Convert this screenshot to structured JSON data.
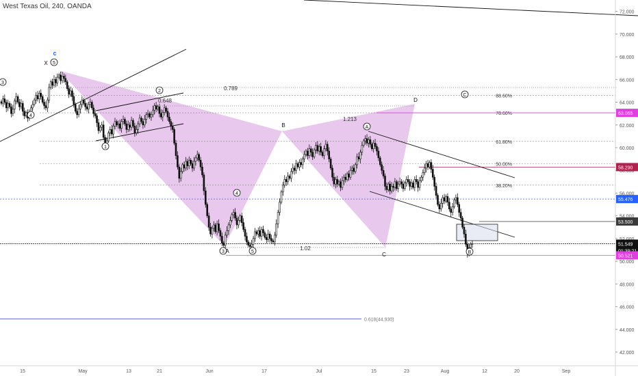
{
  "header": {
    "title": "West Texas Oil, 240, OANDA"
  },
  "chart_data": {
    "type": "candlestick",
    "symbol": "West Texas Oil",
    "interval": "240",
    "source": "OANDA",
    "x_ticks": [
      "15",
      "May",
      "13",
      "21",
      "Jun",
      "17",
      "Jul",
      "15",
      "23",
      "Aug",
      "12",
      "20",
      "Sep"
    ],
    "y_ticks": [
      "72.000",
      "70.000",
      "68.000",
      "66.000",
      "64.000",
      "62.000",
      "60.000",
      "58.000",
      "56.000",
      "54.000",
      "52.000",
      "50.000",
      "48.000",
      "46.000",
      "44.000",
      "42.000"
    ],
    "ylim": [
      40.8,
      73
    ],
    "price_labels": [
      {
        "text": "63.065",
        "value": 63.065,
        "color": "#e040e0"
      },
      {
        "text": "58.290",
        "value": 58.29,
        "color": "#b0234f"
      },
      {
        "text": "55.476",
        "value": 55.476,
        "color": "#2962ff"
      },
      {
        "text": "53.500",
        "value": 53.5,
        "color": "#3a3a3a"
      },
      {
        "text": "51.549",
        "value": 51.549,
        "color": "#111111"
      },
      {
        "text": "01:39:21",
        "value": 50.95,
        "color": "#111111"
      },
      {
        "text": "50.521",
        "value": 50.521,
        "color": "#e040e0"
      }
    ],
    "fib_levels": [
      {
        "label": "88.60%",
        "value": 64.6
      },
      {
        "label": "78.60%",
        "value": 63.065
      },
      {
        "label": "61.80%",
        "value": 60.55
      },
      {
        "label": "50.00%",
        "value": 58.6
      },
      {
        "label": "38.20%",
        "value": 56.7
      }
    ],
    "fib_extension": {
      "label": "0.618(44.930)",
      "value": 44.93
    },
    "harmonic_labels": [
      "X",
      "B",
      "D",
      "C",
      "A"
    ],
    "ratios": [
      "0.789",
      "0.648",
      "1.213",
      "1.02"
    ],
    "wave_labels": [
      "3",
      "4",
      "5",
      "1",
      "2",
      "4",
      "3",
      "5",
      "A",
      "B",
      "C"
    ],
    "wave_degree_label": "c",
    "series": [
      {
        "values": [
          63.9,
          64.3,
          64.0,
          63.5,
          63.9,
          63.6,
          63.0,
          63.4,
          64.1,
          64.5,
          64.0,
          63.6,
          63.9,
          63.2,
          62.8,
          63.1,
          62.6,
          63.0,
          63.5,
          63.8,
          64.2,
          64.6,
          64.3,
          64.8,
          64.5,
          64.0,
          63.7,
          63.5,
          64.2,
          65.3,
          65.8,
          65.5,
          66.0,
          65.7,
          66.2,
          66.4,
          65.9,
          66.3,
          66.1,
          65.8,
          65.2,
          64.7,
          65.0,
          64.5,
          63.8,
          63.2,
          62.9,
          63.4,
          63.8,
          64.2,
          63.9,
          63.6,
          63.4,
          63.8,
          64.0,
          63.5,
          63.0,
          62.8,
          62.2,
          61.5,
          61.8,
          62.0,
          60.9,
          60.3,
          60.6,
          61.3,
          61.6,
          61.2,
          61.9,
          62.3,
          62.0,
          62.1,
          61.7,
          62.3,
          62.5,
          62.1,
          61.6,
          62.0,
          61.8,
          62.4,
          61.9,
          61.3,
          61.6,
          62.1,
          62.6,
          62.3,
          62.0,
          62.5,
          62.9,
          63.0,
          62.7,
          62.9,
          63.3,
          63.7,
          63.4,
          63.6,
          63.0,
          62.7,
          63.1,
          63.5,
          63.2,
          62.7,
          62.3,
          61.9,
          61.6,
          60.4,
          59.3,
          58.3,
          57.3,
          57.9,
          58.5,
          58.2,
          58.8,
          58.4,
          58.9,
          58.6,
          58.2,
          58.8,
          59.1,
          59.4,
          58.9,
          58.3,
          57.6,
          56.2,
          55.0,
          54.0,
          53.0,
          52.4,
          52.9,
          53.2,
          52.6,
          53.3,
          52.7,
          52.2,
          51.6,
          51.4,
          52.3,
          52.7,
          53.2,
          53.6,
          54.1,
          54.3,
          53.8,
          53.2,
          53.6,
          54.0,
          53.4,
          52.8,
          52.2,
          51.7,
          51.4,
          51.3,
          51.5,
          52.0,
          52.6,
          52.4,
          52.7,
          52.2,
          52.8,
          52.5,
          52.1,
          51.9,
          52.4,
          52.0,
          51.8,
          51.7,
          52.3,
          53.3,
          54.3,
          55.2,
          56.1,
          56.7,
          57.2,
          57.0,
          57.5,
          57.3,
          57.9,
          58.2,
          58.0,
          58.6,
          58.3,
          58.7,
          58.5,
          59.0,
          59.4,
          59.7,
          59.3,
          59.9,
          59.6,
          59.2,
          59.8,
          60.2,
          59.7,
          60.1,
          59.6,
          59.3,
          59.9,
          60.3,
          59.7,
          59.0,
          58.2,
          57.4,
          56.8,
          57.2,
          56.8,
          57.0,
          56.5,
          57.1,
          57.4,
          57.2,
          57.7,
          57.4,
          58.0,
          58.2,
          57.9,
          58.5,
          59.2,
          59.0,
          59.6,
          60.2,
          60.6,
          60.8,
          60.4,
          60.7,
          60.3,
          59.9,
          60.4,
          60.1,
          59.7,
          59.1,
          58.5,
          58.0,
          57.5,
          56.6,
          56.3,
          56.8,
          56.2,
          56.6,
          56.5,
          57.0,
          56.4,
          56.8,
          57.0,
          56.8,
          56.4,
          56.9,
          57.2,
          57.0,
          56.6,
          56.9,
          56.5,
          57.2,
          57.0,
          56.5,
          57.1,
          57.4,
          57.8,
          58.2,
          58.6,
          58.3,
          58.7,
          58.1,
          57.4,
          56.6,
          55.8,
          55.0,
          54.6,
          55.1,
          55.6,
          55.3,
          55.7,
          55.2,
          54.6,
          54.3,
          54.8,
          55.4,
          55.6,
          55.0,
          54.3,
          53.8,
          53.0,
          52.4,
          51.5,
          50.7,
          51.2,
          51.5,
          51.55
        ]
      }
    ]
  }
}
